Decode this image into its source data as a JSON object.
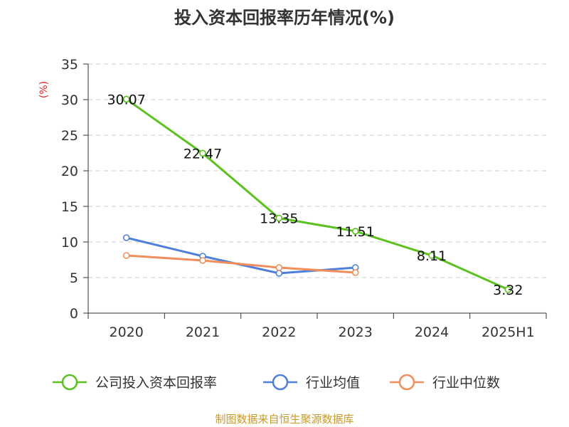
{
  "chart_data": {
    "type": "line",
    "title": "投入资本回报率历年情况(%)",
    "ylabel": "(%)",
    "categories": [
      "2020",
      "2021",
      "2022",
      "2023",
      "2024",
      "2025H1"
    ],
    "ylim": [
      0,
      35
    ],
    "yticks": [
      0,
      5,
      10,
      15,
      20,
      25,
      30,
      35
    ],
    "grid": true,
    "legend_position": "bottom",
    "series": [
      {
        "name": "公司投入资本回报率",
        "color": "#5cc11f",
        "values": [
          30.07,
          22.47,
          13.35,
          11.51,
          8.11,
          3.32
        ],
        "data_labels": [
          "30.07",
          "22.47",
          "13.35",
          "11.51",
          "8.11",
          "3.32"
        ]
      },
      {
        "name": "行业均值",
        "color": "#4f7fd8",
        "values": [
          10.6,
          8.0,
          5.6,
          6.4,
          null,
          null
        ]
      },
      {
        "name": "行业中位数",
        "color": "#f28e5b",
        "values": [
          8.1,
          7.4,
          6.4,
          5.7,
          null,
          null
        ]
      }
    ],
    "axis_color": "#333333",
    "grid_color": "#cccccc",
    "ylabel_color": "#e02020"
  },
  "source": {
    "text": "制图数据来自恒生聚源数据库",
    "color": "#c89a2a"
  }
}
